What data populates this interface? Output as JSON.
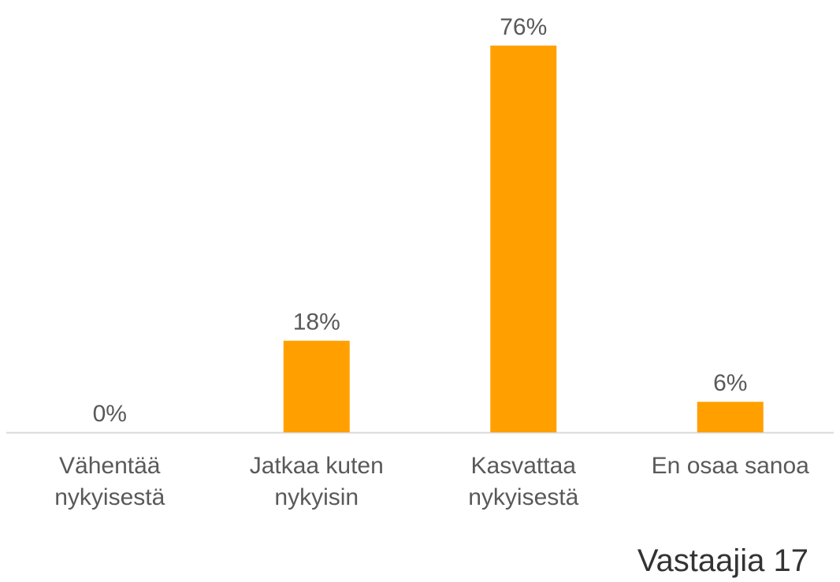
{
  "chart_data": {
    "type": "bar",
    "categories": [
      "Vähentää nykyisestä",
      "Jatkaa kuten nykyisin",
      "Kasvattaa nykyisestä",
      "En osaa sanoa"
    ],
    "values": [
      0,
      18,
      76,
      6
    ],
    "value_labels": [
      "0%",
      "18%",
      "76%",
      "6%"
    ],
    "color": "#ffa000",
    "ylim": [
      0,
      80
    ],
    "annotation": "Vastaajia 17"
  }
}
